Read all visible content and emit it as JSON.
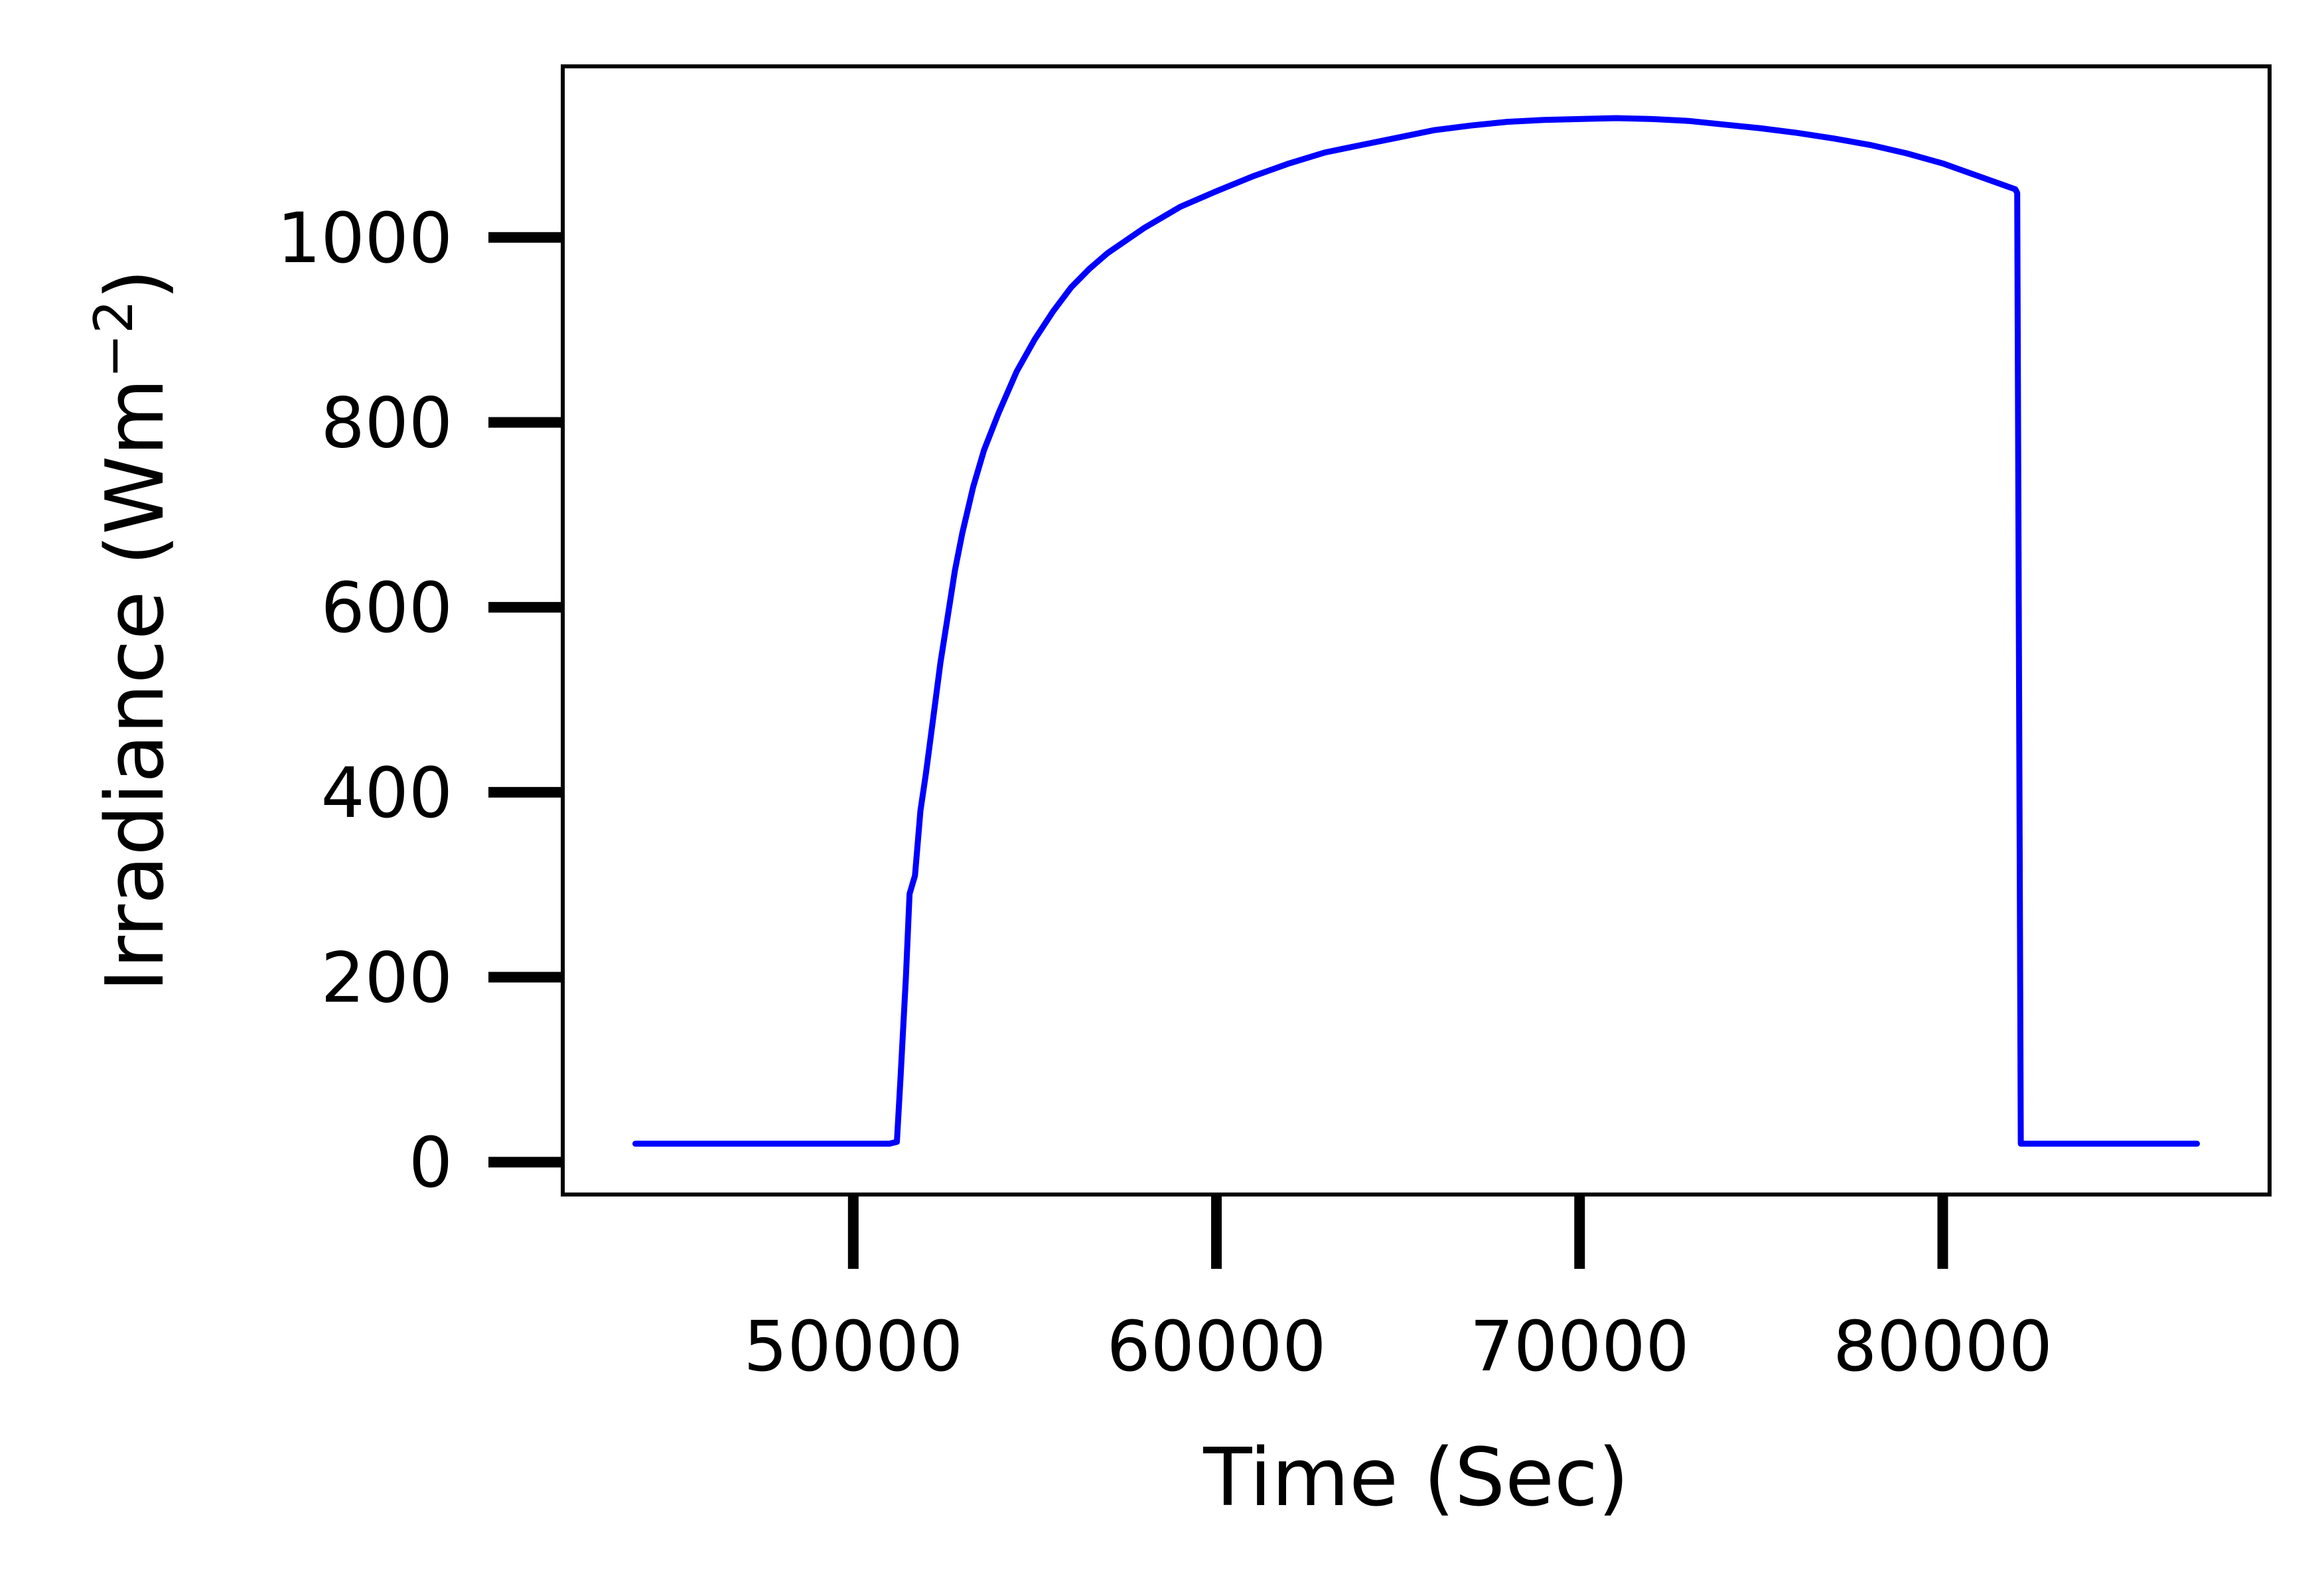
{
  "chart_data": {
    "type": "line",
    "title": "",
    "xlabel": "Time (Sec)",
    "ylabel_text": "Irradiance (Wm",
    "ylabel_sup": "−2",
    "ylabel_close": ")",
    "xlim": [
      42000,
      89000
    ],
    "ylim": [
      -35,
      1185
    ],
    "xticks": [
      50000,
      60000,
      70000,
      80000
    ],
    "xtick_labels": [
      "50000",
      "60000",
      "70000",
      "80000"
    ],
    "yticks": [
      0,
      200,
      400,
      600,
      800,
      1000
    ],
    "ytick_labels": [
      "0",
      "200",
      "400",
      "600",
      "800",
      "1000"
    ],
    "grid": false,
    "legend": false,
    "line_color": "#0000ff",
    "series": [
      {
        "x": [
          44000,
          46000,
          48000,
          50000,
          51000,
          51200,
          51300,
          51450,
          51550,
          51700,
          51850,
          52000,
          52200,
          52400,
          52600,
          52800,
          53000,
          53300,
          53600,
          54000,
          54500,
          55000,
          55500,
          56000,
          56500,
          57000,
          58000,
          59000,
          60000,
          61000,
          62000,
          63000,
          64000,
          65000,
          66000,
          67000,
          68000,
          69000,
          70000,
          71000,
          72000,
          73000,
          74000,
          75000,
          76000,
          77000,
          78000,
          79000,
          80000,
          81000,
          82000,
          82050,
          82150,
          83000,
          84000,
          85000,
          86000,
          87000
        ],
        "y": [
          20,
          20,
          20,
          20,
          20,
          22,
          90,
          200,
          290,
          310,
          380,
          420,
          480,
          540,
          590,
          640,
          680,
          730,
          770,
          810,
          855,
          890,
          920,
          946,
          966,
          983,
          1010,
          1033,
          1050,
          1066,
          1080,
          1092,
          1100,
          1108,
          1116,
          1121,
          1125,
          1127,
          1128,
          1129,
          1128,
          1126,
          1122,
          1118,
          1113,
          1107,
          1100,
          1091,
          1080,
          1066,
          1052,
          1048,
          20,
          20,
          20,
          20,
          20,
          20
        ]
      }
    ]
  }
}
